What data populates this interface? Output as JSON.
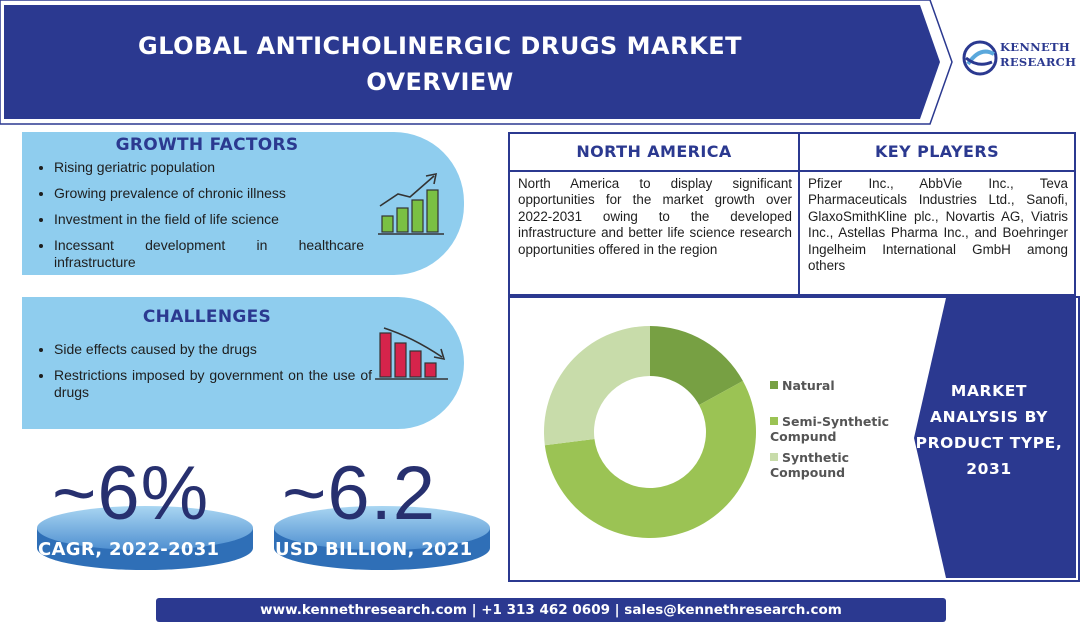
{
  "header": {
    "title_line1": "GLOBAL ANTICHOLINERGIC DRUGS MARKET",
    "title_line2": "OVERVIEW",
    "logo_line1": "KENNETH",
    "logo_line2": "RESEARCH"
  },
  "growth_factors": {
    "title": "GROWTH FACTORS",
    "items": [
      "Rising geriatric population",
      "Growing prevalence of chronic illness",
      "Investment in the field of life science",
      "Incessant development in healthcare infrastructure"
    ],
    "icon": "rising-bar-chart-icon"
  },
  "challenges": {
    "title": "CHALLENGES",
    "items": [
      "Side effects caused by the drugs",
      "Restrictions imposed by government on the use of drugs"
    ],
    "icon": "falling-bar-chart-icon"
  },
  "stats": {
    "cagr_value": "~6%",
    "cagr_label": "CAGR, 2022-2031",
    "market_value": "~6.2",
    "market_label": "USD BILLION, 2021"
  },
  "north_america": {
    "title": "NORTH AMERICA",
    "text": "North America to display significant opportunities for the market growth over 2022-2031 owing to the developed infrastructure and better life science research opportunities offered in the region"
  },
  "key_players": {
    "title": "KEY PLAYERS",
    "text": "Pfizer Inc., AbbVie Inc., Teva Pharmaceuticals Industries Ltd., Sanofi, GlaxoSmithKline plc., Novartis AG, Viatris Inc., Astellas Pharma Inc., and Boehringer Ingelheim International GmbH among others"
  },
  "market_panel": {
    "label_line1": "MARKET",
    "label_line2": "ANALYSIS BY",
    "label_line3": "PRODUCT TYPE,",
    "label_line4": "2031"
  },
  "chart_data": {
    "type": "pie",
    "style": "donut",
    "title": "",
    "series": [
      {
        "name": "Natural",
        "value": 17,
        "color": "#77a043"
      },
      {
        "name": "Semi-Synthetic Compund",
        "value": 56,
        "color": "#9bc354"
      },
      {
        "name": "Synthetic Compound",
        "value": 27,
        "color": "#c8dcaa"
      }
    ],
    "legend_position": "right"
  },
  "footer": {
    "text": "www.kennethresearch.com | +1 313 462 0609 | sales@kennethresearch.com"
  },
  "colors": {
    "navy": "#2b3990",
    "light_blue": "#8fcdee",
    "stat_number": "#27306f"
  }
}
